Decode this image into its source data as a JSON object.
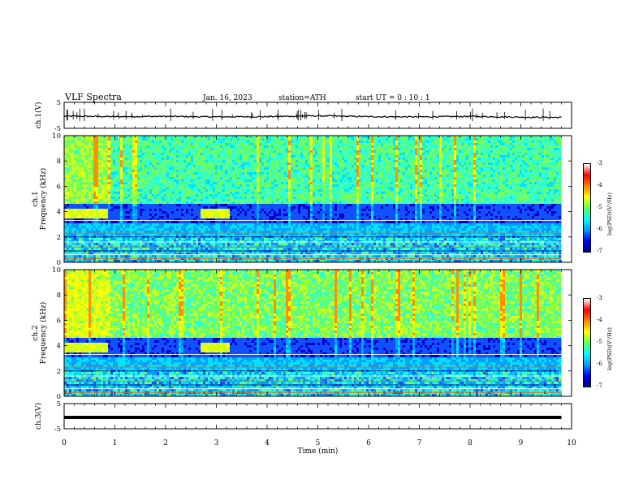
{
  "header": {
    "title": "VLF Spectra",
    "date": "Jan. 16, 2023",
    "station": "station=ATH",
    "start": "start UT = 0 : 10 : 1"
  },
  "colorbar": {
    "title": "log(PSD)(V²/Hz)",
    "ticks": [
      "-3",
      "-4",
      "-5",
      "-6",
      "-7"
    ],
    "colors": [
      "#000080",
      "#0000ff",
      "#00a0ff",
      "#00ffff",
      "#60ff60",
      "#ffff00",
      "#ff8000",
      "#ff0000",
      "#ffffff"
    ]
  },
  "chart_data": [
    {
      "type": "line",
      "ylabel": "ch.1(V)",
      "ylim": [
        -5,
        5
      ],
      "yticks": [
        "5",
        "-5"
      ],
      "x": [
        0,
        1,
        2,
        3,
        4,
        5,
        6,
        7,
        8,
        9,
        9.8
      ],
      "values": [
        -0.3,
        -0.5,
        -0.4,
        -0.6,
        -0.5,
        -0.2,
        -0.5,
        -0.6,
        -0.4,
        -0.7,
        -0.8
      ]
    },
    {
      "type": "heatmap",
      "ylabel": "ch.1\nFrequency (kHz)",
      "ylim": [
        0,
        10
      ],
      "yticks": [
        "10",
        "8",
        "6",
        "4",
        "2",
        "0"
      ],
      "xlim": [
        0,
        9.8
      ],
      "bands": [
        {
          "from_khz": 0,
          "to_khz": 2.2,
          "level": "mixed narrowband lines"
        },
        {
          "from_khz": 2.2,
          "to_khz": 3.2,
          "level": "moderate"
        },
        {
          "from_khz": 3.2,
          "to_khz": 4.8,
          "level": "low"
        },
        {
          "from_khz": 4.8,
          "to_khz": 10,
          "level": "moderate-high with impulsive sferics"
        }
      ],
      "bright_4khz_intervals_min": [
        [
          0,
          0.85
        ],
        [
          2.65,
          3.25
        ]
      ]
    },
    {
      "type": "heatmap",
      "ylabel": "ch.2\nFrequency (kHz)",
      "ylim": [
        0,
        10
      ],
      "yticks": [
        "10",
        "8",
        "6",
        "4",
        "2",
        "0"
      ],
      "xlim": [
        0,
        9.8
      ],
      "bands": [
        {
          "from_khz": 0,
          "to_khz": 2.0,
          "level": "mixed narrowband lines"
        },
        {
          "from_khz": 2.0,
          "to_khz": 3.4,
          "level": "moderate"
        },
        {
          "from_khz": 3.4,
          "to_khz": 4.8,
          "level": "low"
        },
        {
          "from_khz": 4.8,
          "to_khz": 10,
          "level": "high with impulsive sferics"
        }
      ],
      "bright_4khz_intervals_min": [
        [
          0,
          0.85
        ],
        [
          2.65,
          3.25
        ]
      ]
    },
    {
      "type": "line",
      "ylabel": "ch.3(V)",
      "ylim": [
        -5,
        5
      ],
      "yticks": [
        "5",
        "-5"
      ],
      "x": [
        0,
        9.8
      ],
      "values": [
        -0.5,
        -0.5
      ]
    }
  ],
  "xaxis": {
    "label": "Time (min)",
    "ticks": [
      "0",
      "1",
      "2",
      "3",
      "4",
      "5",
      "6",
      "7",
      "8",
      "9",
      "10"
    ],
    "xlim": [
      0,
      10
    ]
  }
}
